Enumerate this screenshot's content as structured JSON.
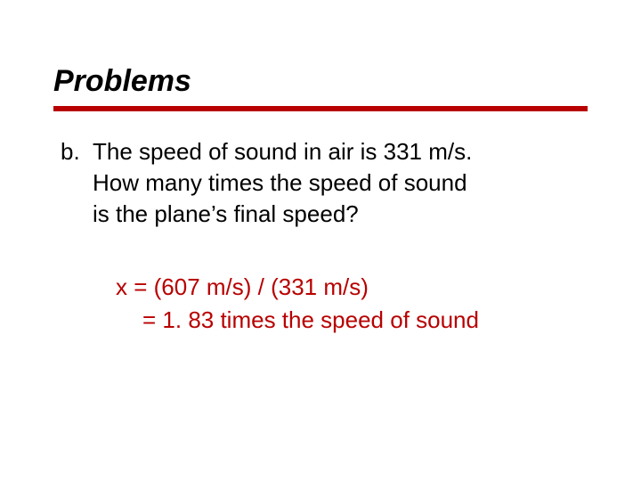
{
  "title": "Problems",
  "question": {
    "label": "b.",
    "line1": "The speed of sound in air is 331 m/s.",
    "line2": "How many times the speed of sound",
    "line3": "is the plane’s final speed?"
  },
  "answer": {
    "line1": "x = (607 m/s) / (331 m/s)",
    "line2": "= 1. 83 times the speed of sound"
  },
  "colors": {
    "title_underline": "#b80000",
    "answer_color": "#b80000",
    "text_color": "#000000",
    "background": "#ffffff"
  },
  "typography": {
    "title_fontsize": 34,
    "body_fontsize": 26,
    "title_style": "bold italic",
    "font_family": "Verdana"
  }
}
